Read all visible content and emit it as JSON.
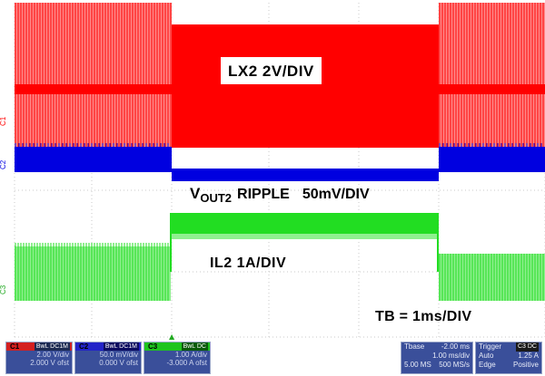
{
  "overlay": {
    "lx2_label": "LX2 2V/DIV",
    "vout_v": "V",
    "vout_sub": "OUT2",
    "vout_rest": "RIPPLE",
    "vout_scale": "50mV/DIV",
    "il2_label": "IL2 1A/DIV",
    "tb_label": "TB = 1ms/DIV"
  },
  "markers": {
    "c1": "C1",
    "c2": "C2",
    "c3": "C3",
    "trigger_marker": "▲"
  },
  "channels": {
    "c1": {
      "tag": "C1",
      "coupling": "BwL DC1M",
      "vdiv": "2.00 V/div",
      "offset": "2.000 V ofst"
    },
    "c2": {
      "tag": "C2",
      "coupling": "BwL DC1M",
      "vdiv": "50.0 mV/div",
      "offset": "0.000 V ofst"
    },
    "c3": {
      "tag": "C3",
      "coupling": "BwL DC",
      "vdiv": "1.00 A/div",
      "offset": "-3.000 A ofst"
    }
  },
  "timebase": {
    "title": "Tbase",
    "delay": "-2.00 ms",
    "per_div": "1.00 ms/div",
    "samples": "5.00 MS",
    "rate": "500 MS/s"
  },
  "trigger": {
    "title": "Trigger",
    "source": "C3 DC",
    "mode": "Auto",
    "level": "1.25 A",
    "type": "Edge",
    "slope": "Positive"
  },
  "colors": {
    "grid": "#c8c8c8",
    "ch1": "#ff0000",
    "ch1_light": "#ff8a8a",
    "ch2": "#0000e0",
    "ch3": "#22dd22",
    "ch3_light": "#8ff08f"
  }
}
